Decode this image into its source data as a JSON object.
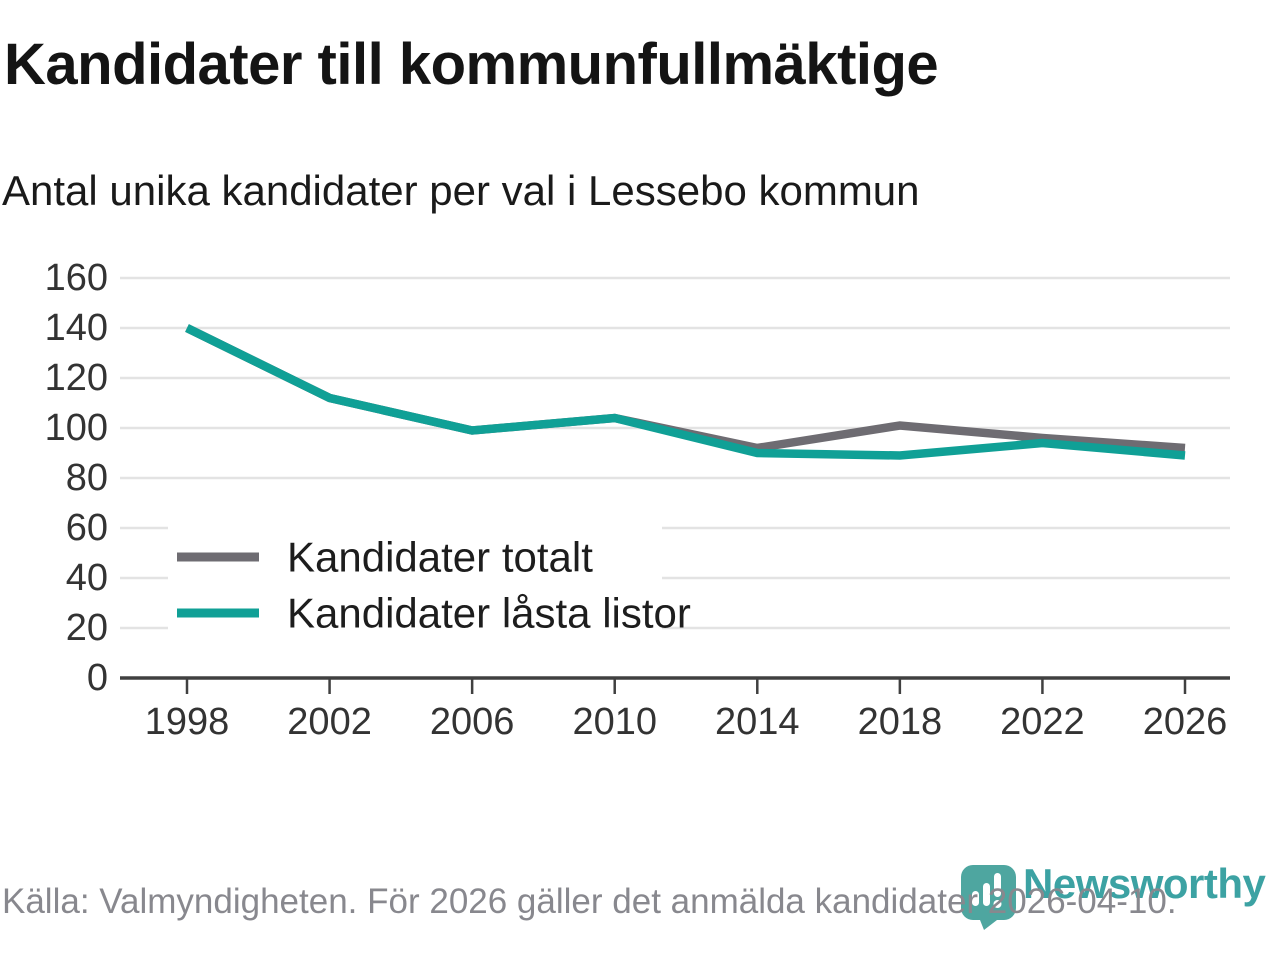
{
  "title": "Kandidater till kommunfullmäktige",
  "subtitle": "Antal unika kandidater per val i Lessebo kommun",
  "footer": {
    "source_text": "Källa: Valmyndigheten. För 2026 gäller det anmälda kandidater 2026-04-10."
  },
  "branding": {
    "name": "Newsworthy",
    "logo_icon": "newsworthy-pin-barchart-icon",
    "pin_color": "#4EA6A0",
    "pin_glyph_color": "#FFFFFF",
    "wordmark_color": "#3CA2A3"
  },
  "colors": {
    "background": "#FFFFFF",
    "title": "#141414",
    "subtitle": "#1A1A1A",
    "grid": "#E3E3E3",
    "axis": "#404040",
    "tick_label": "#333333",
    "legend_text": "#1D1D1D",
    "footer_text": "#88888E",
    "total_line": "#6E6C72",
    "locked_line": "#10A096"
  },
  "chart_data": {
    "type": "line",
    "title": "Kandidater till kommunfullmäktige",
    "subtitle": "Antal unika kandidater per val i Lessebo kommun",
    "categories": [
      "1998",
      "2002",
      "2006",
      "2010",
      "2014",
      "2018",
      "2022",
      "2026"
    ],
    "series": [
      {
        "name": "Kandidater totalt",
        "color": "#6E6C72",
        "values": [
          140,
          112,
          99,
          104,
          92,
          101,
          96,
          92
        ]
      },
      {
        "name": "Kandidater låsta listor",
        "color": "#10A096",
        "values": [
          140,
          112,
          99,
          104,
          90,
          89,
          94,
          89
        ]
      }
    ],
    "xlabel": "",
    "ylabel": "",
    "ylim": [
      0,
      160
    ],
    "ytick_step": 20,
    "grid": "horizontal",
    "legend_position": "inside-bottom-left"
  }
}
